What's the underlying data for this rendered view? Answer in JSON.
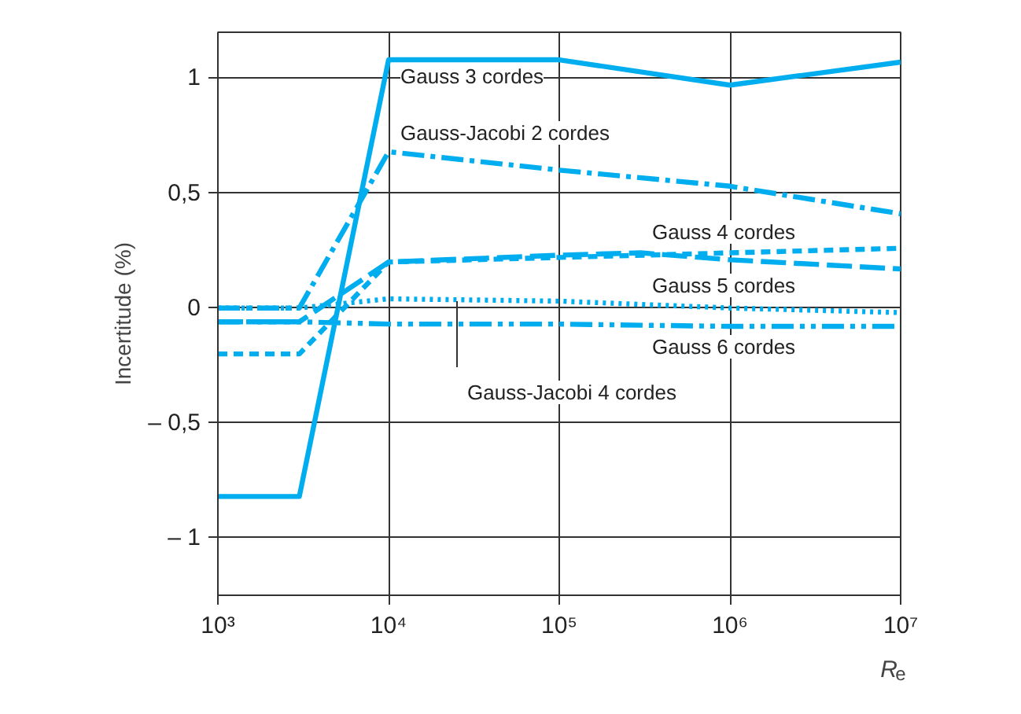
{
  "chart_data": {
    "type": "line",
    "xlabel": "R$_{e}$",
    "ylabel": "Incertitude (%)",
    "log": "x",
    "xlim": [
      1000,
      10000000
    ],
    "ylim": [
      -1.25,
      1.2
    ],
    "xticks": [
      {
        "value": 1000,
        "label": "10³"
      },
      {
        "value": 10000,
        "label": "10⁴"
      },
      {
        "value": 100000,
        "label": "10⁵"
      },
      {
        "value": 1000000,
        "label": "10⁶"
      },
      {
        "value": 10000000,
        "label": "10⁷"
      }
    ],
    "yticks": [
      {
        "value": -1,
        "label": "– 1"
      },
      {
        "value": -0.5,
        "label": "– 0,5"
      },
      0,
      {
        "value": 0.5,
        "label": "0,5"
      },
      1
    ],
    "grid": true,
    "marker": "none",
    "series": [
      {
        "name": "Gauss 3 cordes",
        "color": "#00aeef",
        "line_style": "solid",
        "x": [
          1000,
          3000,
          10000,
          100000,
          1000000,
          10000000
        ],
        "values": [
          -0.82,
          -0.82,
          1.08,
          1.08,
          0.97,
          1.07
        ]
      },
      {
        "name": "Gauss-Jacobi 2 cordes",
        "color": "#00aeef",
        "line_style": "dashdot",
        "x": [
          1000,
          3000,
          10000,
          100000,
          1000000,
          10000000
        ],
        "values": [
          0,
          0,
          0.68,
          0.6,
          0.53,
          0.41
        ]
      },
      {
        "name": "Gauss 4 cordes",
        "color": "#00aeef",
        "line_style": "dashed",
        "x": [
          1000,
          3000,
          10000,
          100000,
          1000000,
          10000000
        ],
        "values": [
          -0.2,
          -0.2,
          0.2,
          0.22,
          0.24,
          0.26
        ]
      },
      {
        "name": "Gauss 5 cordes",
        "color": "#00aeef",
        "line_style": "longdash",
        "x": [
          1000,
          3000,
          10000,
          100000,
          300000,
          1000000,
          10000000
        ],
        "values": [
          -0.06,
          -0.06,
          0.2,
          0.23,
          0.24,
          0.21,
          0.17
        ]
      },
      {
        "name": "Gauss 6 cordes",
        "color": "#00aeef",
        "line_style": "dashdotdot",
        "x": [
          1000,
          3000,
          10000,
          100000,
          1000000,
          10000000
        ],
        "values": [
          -0.06,
          -0.06,
          -0.07,
          -0.07,
          -0.08,
          -0.08
        ]
      },
      {
        "name": "Gauss-Jacobi 4 cordes",
        "color": "#00aeef",
        "line_style": "dotted",
        "x": [
          1000,
          3000,
          10000,
          100000,
          1000000,
          10000000
        ],
        "values": [
          0,
          0,
          0.04,
          0.03,
          0,
          -0.02
        ]
      }
    ]
  }
}
